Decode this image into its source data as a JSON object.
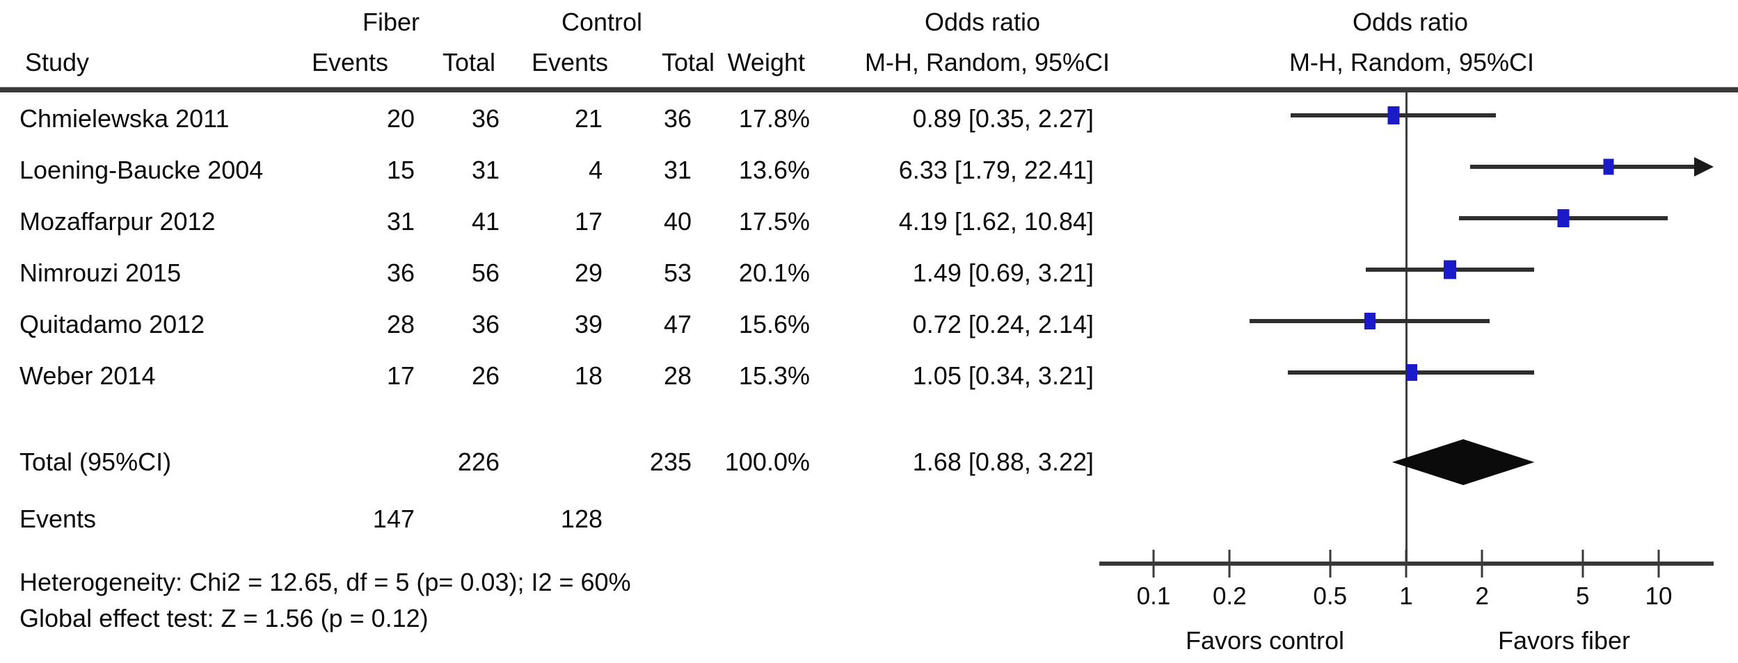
{
  "header": {
    "group1": "Fiber",
    "group2": "Control",
    "study": "Study",
    "events": "Events",
    "total": "Total",
    "weight": "Weight",
    "or_title": "Odds ratio",
    "or_sub": "M-H, Random, 95%CI",
    "plot_title": "Odds ratio",
    "plot_sub": "M-H, Random, 95%CI"
  },
  "colors": {
    "marker_blue": "#1a1ac8",
    "ci_line": "#2e2e2e",
    "diamond": "#0b0b0b",
    "rule": "#3a3a3a"
  },
  "chart_data": {
    "type": "scatter",
    "subtype": "forest-plot",
    "x_scale": "log10",
    "axis_ticks": [
      "0.1",
      "0.2",
      "0.5",
      "1",
      "2",
      "5",
      "10"
    ],
    "axis_range": [
      0.055,
      16.5
    ],
    "favors_left": "Favors control",
    "favors_right": "Favors fiber",
    "studies": [
      {
        "study": "Chmielewska 2011",
        "fiber_events": "20",
        "fiber_total": "36",
        "control_events": "21",
        "control_total": "36",
        "weight": "17.8%",
        "or_label": "0.89 [0.35, 2.27]",
        "or": 0.89,
        "ci_low": 0.35,
        "ci_high": 2.27
      },
      {
        "study": "Loening-Baucke 2004",
        "fiber_events": "15",
        "fiber_total": "31",
        "control_events": "4",
        "control_total": "31",
        "weight": "13.6%",
        "or_label": "6.33 [1.79, 22.41]",
        "or": 6.33,
        "ci_low": 1.79,
        "ci_high": 22.41
      },
      {
        "study": "Mozaffarpur 2012",
        "fiber_events": "31",
        "fiber_total": "41",
        "control_events": "17",
        "control_total": "40",
        "weight": "17.5%",
        "or_label": "4.19 [1.62, 10.84]",
        "or": 4.19,
        "ci_low": 1.62,
        "ci_high": 10.84
      },
      {
        "study": "Nimrouzi 2015",
        "fiber_events": "36",
        "fiber_total": "56",
        "control_events": "29",
        "control_total": "53",
        "weight": "20.1%",
        "or_label": "1.49 [0.69, 3.21]",
        "or": 1.49,
        "ci_low": 0.69,
        "ci_high": 3.21
      },
      {
        "study": "Quitadamo 2012",
        "fiber_events": "28",
        "fiber_total": "36",
        "control_events": "39",
        "control_total": "47",
        "weight": "15.6%",
        "or_label": "0.72 [0.24, 2.14]",
        "or": 0.72,
        "ci_low": 0.24,
        "ci_high": 2.14
      },
      {
        "study": "Weber 2014",
        "fiber_events": "17",
        "fiber_total": "26",
        "control_events": "18",
        "control_total": "28",
        "weight": "15.3%",
        "or_label": "1.05 [0.34, 3.21]",
        "or": 1.05,
        "ci_low": 0.34,
        "ci_high": 3.21
      }
    ],
    "total": {
      "label": "Total (95%CI)",
      "fiber_total": "226",
      "control_total": "235",
      "weight": "100.0%",
      "or_label": "1.68 [0.88, 3.22]",
      "or": 1.68,
      "ci_low": 0.88,
      "ci_high": 3.22
    },
    "events_total": {
      "label": "Events",
      "fiber_events": "147",
      "control_events": "128"
    },
    "footnotes": [
      "Heterogeneity: Chi2 = 12.65, df = 5 (p= 0.03); I2 = 60%",
      "Global effect test: Z = 1.56 (p = 0.12)"
    ]
  }
}
